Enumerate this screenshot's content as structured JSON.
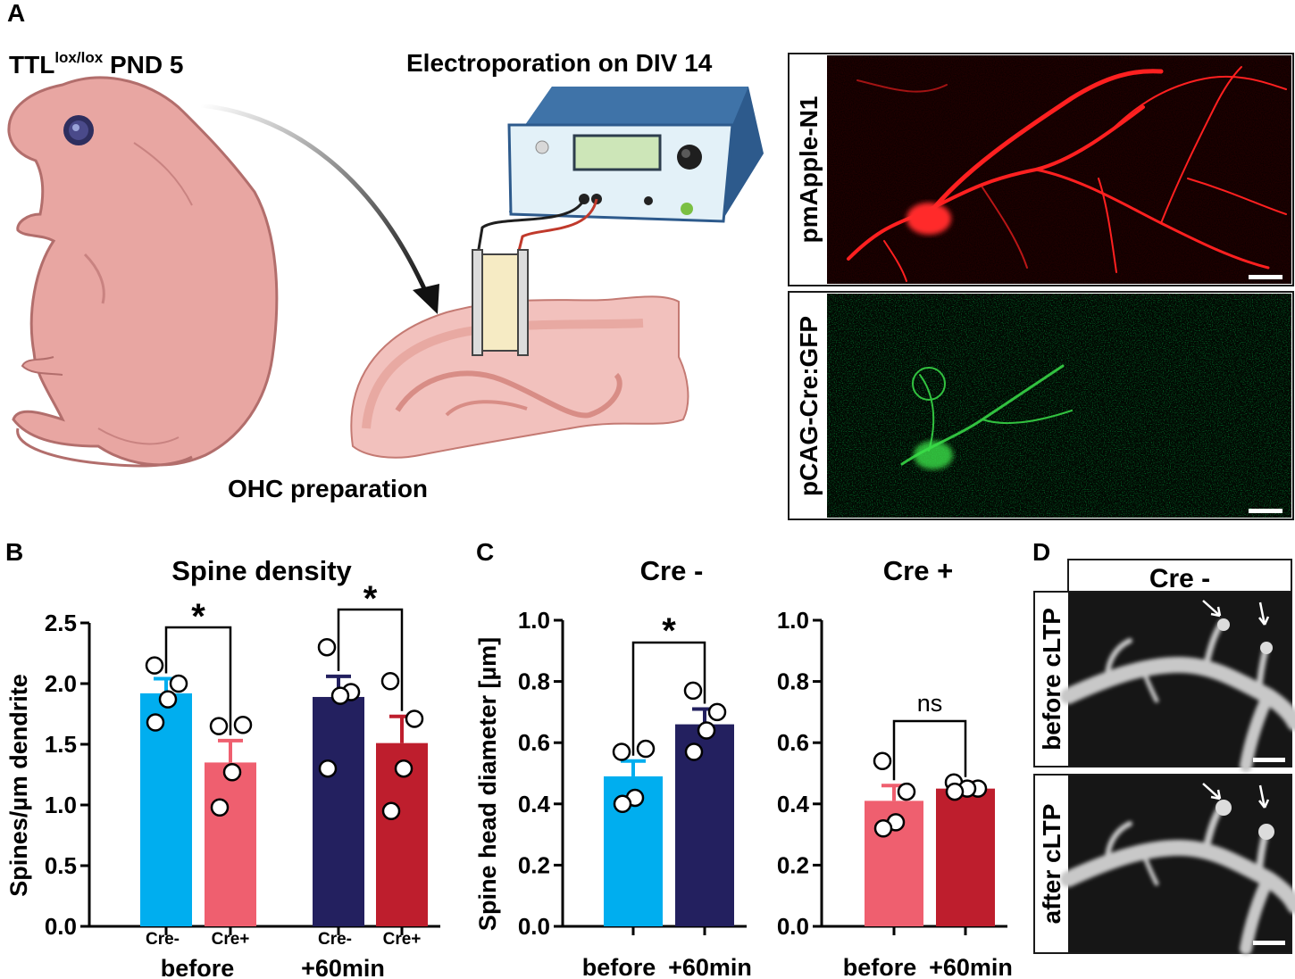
{
  "panel_labels": [
    "A",
    "B",
    "C",
    "D"
  ],
  "panel_a": {
    "animal_label": "TTL",
    "animal_superscript": "lox/lox",
    "animal_age": "PND 5",
    "electroporation_label": "Electroporation on DIV 14",
    "ohc_label": "OHC preparation",
    "micrographs": [
      {
        "label": "pmApple-N1",
        "color": "#ff1a1a"
      },
      {
        "label": "pCAG-Cre:GFP",
        "color": "#2ecc40"
      }
    ]
  },
  "panel_d": {
    "header": "Cre -",
    "rows": [
      "before cLTP",
      "after cLTP"
    ]
  },
  "colors": {
    "cre_minus_before": "#00AEEF",
    "cre_plus_before": "#EF5F6F",
    "cre_minus_after": "#23205F",
    "cre_plus_after": "#BE1E2D"
  },
  "chart_data": [
    {
      "type": "bar",
      "title": "Spine density",
      "ylabel": "Spines/µm dendrite",
      "ylim": [
        0,
        2.5
      ],
      "yticks": [
        "0.0",
        "0.5",
        "1.0",
        "1.5",
        "2.0",
        "2.5"
      ],
      "categories": [
        "Cre-",
        "Cre+",
        "Cre-",
        "Cre+"
      ],
      "groups": [
        "before",
        "+60min"
      ],
      "values": [
        1.92,
        1.35,
        1.89,
        1.51
      ],
      "errors": [
        0.12,
        0.18,
        0.17,
        0.22
      ],
      "points": [
        [
          2.15,
          2.0,
          1.87,
          1.68
        ],
        [
          1.65,
          1.66,
          1.27,
          0.98
        ],
        [
          2.3,
          1.93,
          1.9,
          1.3
        ],
        [
          2.02,
          1.71,
          1.3,
          0.95
        ]
      ],
      "comparisons": [
        {
          "pair": [
            0,
            1
          ],
          "label": "*"
        },
        {
          "pair": [
            2,
            3
          ],
          "label": "*"
        }
      ],
      "bar_colors": [
        "#00AEEF",
        "#EF5F6F",
        "#23205F",
        "#BE1E2D"
      ]
    },
    {
      "type": "bar",
      "title": "Cre -",
      "ylabel": "Spine head diameter [µm]",
      "ylim": [
        0,
        1.0
      ],
      "yticks": [
        "0.0",
        "0.2",
        "0.4",
        "0.6",
        "0.8",
        "1.0"
      ],
      "categories": [
        "before",
        "+60min"
      ],
      "values": [
        0.49,
        0.66
      ],
      "errors": [
        0.05,
        0.05
      ],
      "points": [
        [
          0.57,
          0.58,
          0.42,
          0.4
        ],
        [
          0.77,
          0.7,
          0.64,
          0.57
        ]
      ],
      "comparisons": [
        {
          "pair": [
            0,
            1
          ],
          "label": "*"
        }
      ],
      "bar_colors": [
        "#00AEEF",
        "#23205F"
      ]
    },
    {
      "type": "bar",
      "title": "Cre +",
      "ylabel": "",
      "ylim": [
        0,
        1.0
      ],
      "yticks": [
        "0.0",
        "0.2",
        "0.4",
        "0.6",
        "0.8",
        "1.0"
      ],
      "categories": [
        "before",
        "+60min"
      ],
      "values": [
        0.41,
        0.45
      ],
      "errors": [
        0.05,
        0.02
      ],
      "points": [
        [
          0.54,
          0.44,
          0.34,
          0.32
        ],
        [
          0.47,
          0.45,
          0.45,
          0.44
        ]
      ],
      "comparisons": [
        {
          "pair": [
            0,
            1
          ],
          "label": "ns"
        }
      ],
      "bar_colors": [
        "#EF5F6F",
        "#BE1E2D"
      ]
    }
  ]
}
